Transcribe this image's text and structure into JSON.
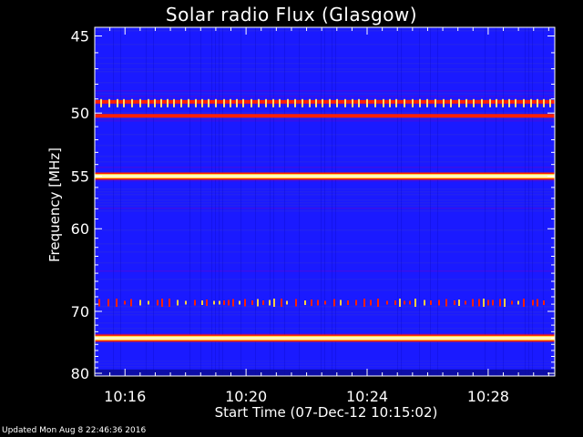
{
  "header": {
    "title": "Solar radio Flux (Glasgow)"
  },
  "footer": {
    "updated": "Updated Mon Aug  8 22:46:36 2016"
  },
  "chart_data": {
    "type": "heatmap",
    "title": "Solar radio Flux (Glasgow)",
    "xlabel": "Start Time (07-Dec-12 10:15:02)",
    "ylabel": "Frequency [MHz]",
    "x_tick_labels": [
      "10:16",
      "10:20",
      "10:24",
      "10:28"
    ],
    "x_ticks_minutes_after_1015": [
      1,
      5,
      9,
      13
    ],
    "xlim_minutes_after_1015": [
      0.0,
      15.2
    ],
    "y_tick_labels": [
      "45",
      "50",
      "55",
      "60",
      "70",
      "80"
    ],
    "y_ticks": [
      45,
      50,
      55,
      60,
      70,
      80
    ],
    "ylim": [
      44.5,
      80.5
    ],
    "y_scale": "reciprocal",
    "colors": {
      "background": "#000000",
      "low": "#1a1aff",
      "mid": "#7a00c0",
      "high": "#ff2000",
      "peak": "#fff8c0"
    },
    "bands": [
      {
        "freq_mhz": 49.2,
        "intensity": "peak",
        "bursty": true
      },
      {
        "freq_mhz": 50.2,
        "intensity": "high",
        "bursty": false
      },
      {
        "freq_mhz": 55.0,
        "intensity": "peak",
        "bursty": false
      },
      {
        "freq_mhz": 68.8,
        "intensity": "high",
        "bursty": true
      },
      {
        "freq_mhz": 74.0,
        "intensity": "peak",
        "bursty": false
      }
    ]
  }
}
